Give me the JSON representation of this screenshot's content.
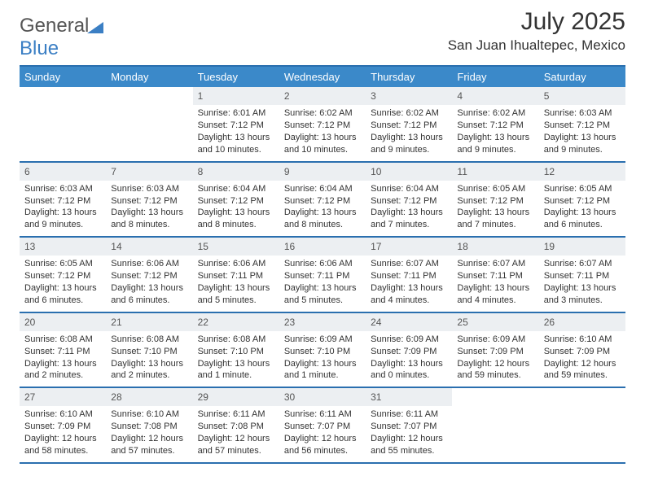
{
  "brand": {
    "general": "General",
    "blue": "Blue"
  },
  "title": "July 2025",
  "location": "San Juan Ihualtepec, Mexico",
  "colors": {
    "header_bg": "#3b89c9",
    "header_border": "#2a6faf",
    "daynum_bg": "#eceff2",
    "text": "#333333",
    "brand_blue": "#3b7fc4"
  },
  "daynames": [
    "Sunday",
    "Monday",
    "Tuesday",
    "Wednesday",
    "Thursday",
    "Friday",
    "Saturday"
  ],
  "weeks": [
    [
      {
        "n": "",
        "sr": "",
        "ss": "",
        "dl": ""
      },
      {
        "n": "",
        "sr": "",
        "ss": "",
        "dl": ""
      },
      {
        "n": "1",
        "sr": "Sunrise: 6:01 AM",
        "ss": "Sunset: 7:12 PM",
        "dl": "Daylight: 13 hours and 10 minutes."
      },
      {
        "n": "2",
        "sr": "Sunrise: 6:02 AM",
        "ss": "Sunset: 7:12 PM",
        "dl": "Daylight: 13 hours and 10 minutes."
      },
      {
        "n": "3",
        "sr": "Sunrise: 6:02 AM",
        "ss": "Sunset: 7:12 PM",
        "dl": "Daylight: 13 hours and 9 minutes."
      },
      {
        "n": "4",
        "sr": "Sunrise: 6:02 AM",
        "ss": "Sunset: 7:12 PM",
        "dl": "Daylight: 13 hours and 9 minutes."
      },
      {
        "n": "5",
        "sr": "Sunrise: 6:03 AM",
        "ss": "Sunset: 7:12 PM",
        "dl": "Daylight: 13 hours and 9 minutes."
      }
    ],
    [
      {
        "n": "6",
        "sr": "Sunrise: 6:03 AM",
        "ss": "Sunset: 7:12 PM",
        "dl": "Daylight: 13 hours and 9 minutes."
      },
      {
        "n": "7",
        "sr": "Sunrise: 6:03 AM",
        "ss": "Sunset: 7:12 PM",
        "dl": "Daylight: 13 hours and 8 minutes."
      },
      {
        "n": "8",
        "sr": "Sunrise: 6:04 AM",
        "ss": "Sunset: 7:12 PM",
        "dl": "Daylight: 13 hours and 8 minutes."
      },
      {
        "n": "9",
        "sr": "Sunrise: 6:04 AM",
        "ss": "Sunset: 7:12 PM",
        "dl": "Daylight: 13 hours and 8 minutes."
      },
      {
        "n": "10",
        "sr": "Sunrise: 6:04 AM",
        "ss": "Sunset: 7:12 PM",
        "dl": "Daylight: 13 hours and 7 minutes."
      },
      {
        "n": "11",
        "sr": "Sunrise: 6:05 AM",
        "ss": "Sunset: 7:12 PM",
        "dl": "Daylight: 13 hours and 7 minutes."
      },
      {
        "n": "12",
        "sr": "Sunrise: 6:05 AM",
        "ss": "Sunset: 7:12 PM",
        "dl": "Daylight: 13 hours and 6 minutes."
      }
    ],
    [
      {
        "n": "13",
        "sr": "Sunrise: 6:05 AM",
        "ss": "Sunset: 7:12 PM",
        "dl": "Daylight: 13 hours and 6 minutes."
      },
      {
        "n": "14",
        "sr": "Sunrise: 6:06 AM",
        "ss": "Sunset: 7:12 PM",
        "dl": "Daylight: 13 hours and 6 minutes."
      },
      {
        "n": "15",
        "sr": "Sunrise: 6:06 AM",
        "ss": "Sunset: 7:11 PM",
        "dl": "Daylight: 13 hours and 5 minutes."
      },
      {
        "n": "16",
        "sr": "Sunrise: 6:06 AM",
        "ss": "Sunset: 7:11 PM",
        "dl": "Daylight: 13 hours and 5 minutes."
      },
      {
        "n": "17",
        "sr": "Sunrise: 6:07 AM",
        "ss": "Sunset: 7:11 PM",
        "dl": "Daylight: 13 hours and 4 minutes."
      },
      {
        "n": "18",
        "sr": "Sunrise: 6:07 AM",
        "ss": "Sunset: 7:11 PM",
        "dl": "Daylight: 13 hours and 4 minutes."
      },
      {
        "n": "19",
        "sr": "Sunrise: 6:07 AM",
        "ss": "Sunset: 7:11 PM",
        "dl": "Daylight: 13 hours and 3 minutes."
      }
    ],
    [
      {
        "n": "20",
        "sr": "Sunrise: 6:08 AM",
        "ss": "Sunset: 7:11 PM",
        "dl": "Daylight: 13 hours and 2 minutes."
      },
      {
        "n": "21",
        "sr": "Sunrise: 6:08 AM",
        "ss": "Sunset: 7:10 PM",
        "dl": "Daylight: 13 hours and 2 minutes."
      },
      {
        "n": "22",
        "sr": "Sunrise: 6:08 AM",
        "ss": "Sunset: 7:10 PM",
        "dl": "Daylight: 13 hours and 1 minute."
      },
      {
        "n": "23",
        "sr": "Sunrise: 6:09 AM",
        "ss": "Sunset: 7:10 PM",
        "dl": "Daylight: 13 hours and 1 minute."
      },
      {
        "n": "24",
        "sr": "Sunrise: 6:09 AM",
        "ss": "Sunset: 7:09 PM",
        "dl": "Daylight: 13 hours and 0 minutes."
      },
      {
        "n": "25",
        "sr": "Sunrise: 6:09 AM",
        "ss": "Sunset: 7:09 PM",
        "dl": "Daylight: 12 hours and 59 minutes."
      },
      {
        "n": "26",
        "sr": "Sunrise: 6:10 AM",
        "ss": "Sunset: 7:09 PM",
        "dl": "Daylight: 12 hours and 59 minutes."
      }
    ],
    [
      {
        "n": "27",
        "sr": "Sunrise: 6:10 AM",
        "ss": "Sunset: 7:09 PM",
        "dl": "Daylight: 12 hours and 58 minutes."
      },
      {
        "n": "28",
        "sr": "Sunrise: 6:10 AM",
        "ss": "Sunset: 7:08 PM",
        "dl": "Daylight: 12 hours and 57 minutes."
      },
      {
        "n": "29",
        "sr": "Sunrise: 6:11 AM",
        "ss": "Sunset: 7:08 PM",
        "dl": "Daylight: 12 hours and 57 minutes."
      },
      {
        "n": "30",
        "sr": "Sunrise: 6:11 AM",
        "ss": "Sunset: 7:07 PM",
        "dl": "Daylight: 12 hours and 56 minutes."
      },
      {
        "n": "31",
        "sr": "Sunrise: 6:11 AM",
        "ss": "Sunset: 7:07 PM",
        "dl": "Daylight: 12 hours and 55 minutes."
      },
      {
        "n": "",
        "sr": "",
        "ss": "",
        "dl": ""
      },
      {
        "n": "",
        "sr": "",
        "ss": "",
        "dl": ""
      }
    ]
  ]
}
